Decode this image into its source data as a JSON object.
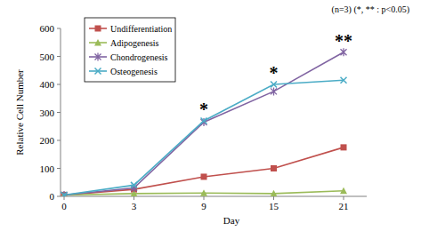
{
  "chart_data": {
    "type": "line",
    "subtitle": "(n=3) (*, ** : p<0.05)",
    "x_label": "Day",
    "y_label": "Relative Cell Number",
    "categories": [
      "0",
      "3",
      "9",
      "15",
      "21"
    ],
    "series": [
      {
        "name": "Undifferentiation",
        "color": "#c0504d",
        "marker": "square",
        "values": [
          5,
          25,
          70,
          100,
          175
        ]
      },
      {
        "name": "Adipogenesis",
        "color": "#9bbb59",
        "marker": "triangle",
        "values": [
          5,
          10,
          12,
          10,
          20
        ]
      },
      {
        "name": "Chondrogenesis",
        "color": "#8064a2",
        "marker": "star",
        "values": [
          5,
          30,
          265,
          375,
          515
        ]
      },
      {
        "name": "Osteogenesis",
        "color": "#4bacc6",
        "marker": "x",
        "values": [
          5,
          40,
          270,
          400,
          415
        ]
      }
    ],
    "annotations": [
      {
        "text": "*",
        "category": "9"
      },
      {
        "text": "*",
        "category": "15"
      },
      {
        "text": "**",
        "category": "21"
      }
    ],
    "ylim": [
      0,
      600
    ],
    "yticks": [
      0,
      100,
      200,
      300,
      400,
      500,
      600
    ],
    "grid": false,
    "legend": "upper left"
  }
}
